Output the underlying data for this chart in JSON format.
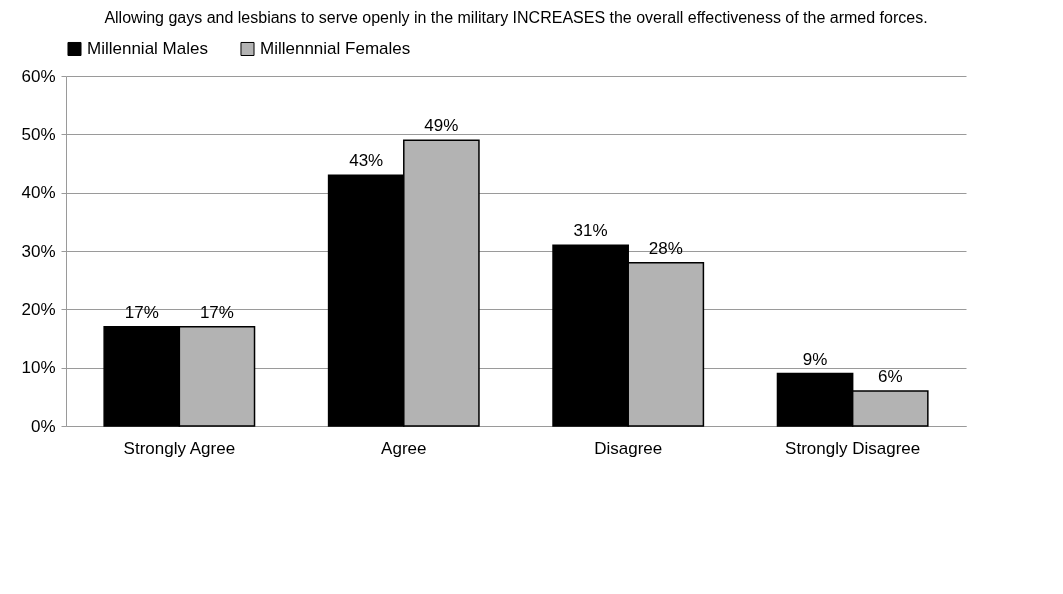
{
  "chart_data": {
    "type": "bar",
    "title": "Allowing gays and lesbians to serve openly in the military INCREASES the overall effectiveness of the armed forces.",
    "categories": [
      "Strongly Agree",
      "Agree",
      "Disagree",
      "Strongly Disagree"
    ],
    "series": [
      {
        "name": "Millennial Males",
        "color": "#000000",
        "values": [
          17,
          43,
          31,
          9
        ],
        "value_labels": [
          "17%",
          "43%",
          "31%",
          "9%"
        ]
      },
      {
        "name": "Millennnial Females",
        "color": "#b3b3b3",
        "values": [
          17,
          49,
          28,
          6
        ],
        "value_labels": [
          "17%",
          "49%",
          "28%",
          "6%"
        ]
      }
    ],
    "ylim": [
      0,
      60
    ],
    "yticks": [
      {
        "value": 0,
        "label": "0%"
      },
      {
        "value": 10,
        "label": "10%"
      },
      {
        "value": 20,
        "label": "20%"
      },
      {
        "value": 30,
        "label": "30%"
      },
      {
        "value": 40,
        "label": "40%"
      },
      {
        "value": 50,
        "label": "50%"
      },
      {
        "value": 60,
        "label": "60%"
      }
    ],
    "grid": "y",
    "legend": "top"
  }
}
